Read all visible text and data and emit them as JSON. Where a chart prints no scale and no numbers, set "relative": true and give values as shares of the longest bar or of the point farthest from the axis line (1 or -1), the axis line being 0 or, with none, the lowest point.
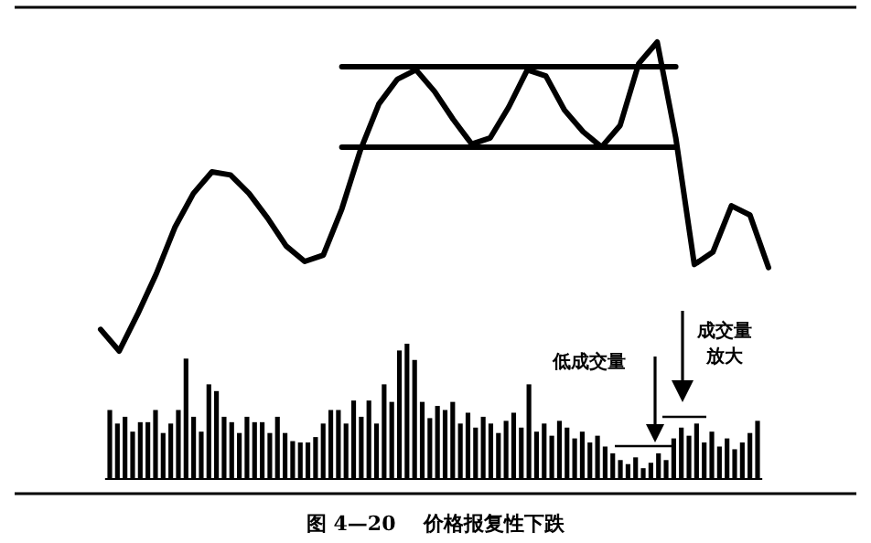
{
  "chart_data": [
    {
      "type": "line",
      "relative": true,
      "categories": [
        null,
        null,
        null,
        null,
        null,
        null,
        null,
        null,
        null,
        null,
        null,
        null,
        null,
        null,
        null,
        null,
        null,
        null,
        null,
        null,
        null,
        null,
        null,
        null,
        null,
        null,
        null,
        null,
        null,
        null,
        null,
        null,
        null,
        null,
        null,
        null,
        null
      ],
      "series": [
        {
          "color": "#000000",
          "values": [
            0.07,
            0.0,
            0.12,
            0.25,
            0.4,
            0.51,
            0.58,
            0.57,
            0.51,
            0.43,
            0.34,
            0.29,
            0.31,
            0.46,
            0.65,
            0.8,
            0.88,
            0.91,
            0.84,
            0.75,
            0.67,
            0.69,
            0.79,
            0.91,
            0.89,
            0.78,
            0.71,
            0.66,
            0.73,
            0.93,
            1.0,
            0.69,
            0.28,
            0.32,
            0.47,
            0.44,
            0.27
          ]
        },
        {
          "color": "#000000",
          "values": [
            null,
            null,
            null,
            null,
            null,
            null,
            null,
            null,
            null,
            null,
            null,
            null,
            null,
            0.92,
            0.92,
            0.92,
            0.92,
            0.92,
            0.92,
            0.92,
            0.92,
            0.92,
            0.92,
            0.92,
            0.92,
            0.92,
            0.92,
            0.92,
            0.92,
            0.92,
            0.92,
            0.92,
            null,
            null,
            null,
            null,
            null
          ]
        },
        {
          "color": "#000000",
          "values": [
            null,
            null,
            null,
            null,
            null,
            null,
            null,
            null,
            null,
            null,
            null,
            null,
            null,
            0.66,
            0.66,
            0.66,
            0.66,
            0.66,
            0.66,
            0.66,
            0.66,
            0.66,
            0.66,
            0.66,
            0.66,
            0.66,
            0.66,
            0.66,
            0.66,
            0.66,
            0.66,
            0.66,
            null,
            null,
            null,
            null,
            null
          ]
        }
      ]
    },
    {
      "type": "bar",
      "relative": true,
      "color": "#000000",
      "categories": [
        null,
        null,
        null,
        null,
        null,
        null,
        null,
        null,
        null,
        null,
        null,
        null,
        null,
        null,
        null,
        null,
        null,
        null,
        null,
        null,
        null,
        null,
        null,
        null,
        null,
        null,
        null,
        null,
        null,
        null,
        null,
        null,
        null,
        null,
        null,
        null,
        null,
        null,
        null,
        null,
        null,
        null,
        null,
        null,
        null,
        null,
        null,
        null,
        null,
        null,
        null,
        null,
        null,
        null,
        null,
        null,
        null,
        null,
        null,
        null,
        null,
        null,
        null,
        null,
        null,
        null,
        null,
        null,
        null,
        null,
        null,
        null,
        null,
        null,
        null,
        null,
        null,
        null,
        null,
        null,
        null,
        null,
        null,
        null,
        null,
        null
      ],
      "values": [
        0.51,
        0.41,
        0.46,
        0.35,
        0.42,
        0.42,
        0.51,
        0.34,
        0.41,
        0.51,
        0.89,
        0.46,
        0.35,
        0.7,
        0.65,
        0.46,
        0.42,
        0.34,
        0.46,
        0.42,
        0.42,
        0.34,
        0.46,
        0.34,
        0.28,
        0.27,
        0.27,
        0.31,
        0.41,
        0.51,
        0.51,
        0.41,
        0.58,
        0.46,
        0.58,
        0.41,
        0.7,
        0.57,
        0.95,
        1.0,
        0.88,
        0.57,
        0.45,
        0.54,
        0.51,
        0.57,
        0.41,
        0.49,
        0.38,
        0.46,
        0.41,
        0.34,
        0.43,
        0.49,
        0.38,
        0.7,
        0.35,
        0.41,
        0.32,
        0.43,
        0.38,
        0.3,
        0.35,
        0.27,
        0.32,
        0.24,
        0.19,
        0.14,
        0.11,
        0.16,
        0.08,
        0.12,
        0.19,
        0.14,
        0.3,
        0.38,
        0.32,
        0.41,
        0.27,
        0.35,
        0.24,
        0.3,
        0.22,
        0.27,
        0.34,
        0.43
      ],
      "annotations": [
        "低成交量",
        "成交量放大",
        "图 4—20    价格报复性下跌"
      ]
    }
  ]
}
